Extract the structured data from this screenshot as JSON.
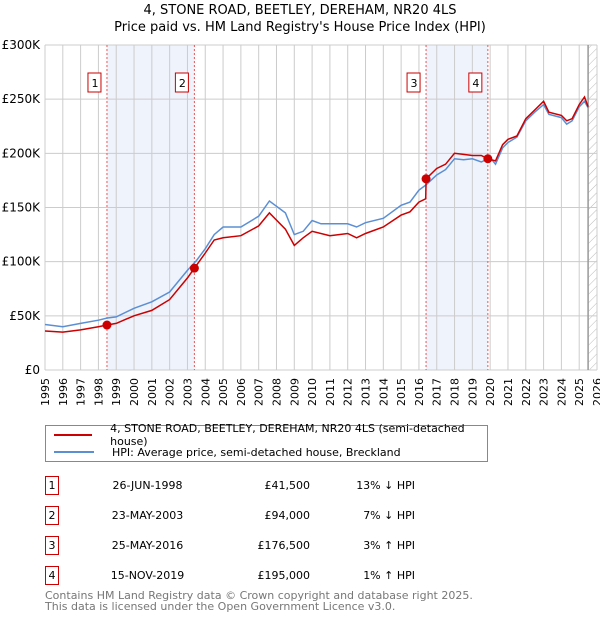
{
  "header": {
    "title": "4, STONE ROAD, BEETLEY, DEREHAM, NR20 4LS",
    "subtitle": "Price paid vs. HM Land Registry's House Price Index (HPI)"
  },
  "chart_data": {
    "type": "line",
    "title": "4, STONE ROAD, BEETLEY, DEREHAM, NR20 4LS — Price paid vs. HM Land Registry's House Price Index (HPI)",
    "xlim": [
      1995,
      2026
    ],
    "ylim": [
      0,
      300000
    ],
    "y_ticks": [
      {
        "v": 0,
        "label": "£0"
      },
      {
        "v": 50000,
        "label": "£50K"
      },
      {
        "v": 100000,
        "label": "£100K"
      },
      {
        "v": 150000,
        "label": "£150K"
      },
      {
        "v": 200000,
        "label": "£200K"
      },
      {
        "v": 250000,
        "label": "£250K"
      },
      {
        "v": 300000,
        "label": "£300K"
      }
    ],
    "x_ticks": [
      "1995",
      "1996",
      "1997",
      "1998",
      "1999",
      "2000",
      "2001",
      "2002",
      "2003",
      "2004",
      "2005",
      "2006",
      "2007",
      "2008",
      "2009",
      "2010",
      "2011",
      "2012",
      "2013",
      "2014",
      "2015",
      "2016",
      "2017",
      "2018",
      "2019",
      "2020",
      "2021",
      "2022",
      "2023",
      "2024",
      "2025",
      "2026"
    ],
    "grid": true,
    "colors": {
      "property": "#cc0000",
      "hpi": "#5b8fd4",
      "shade": "#eef3fc"
    },
    "forecast_from": 2025.5,
    "series": [
      {
        "name": "4, STONE ROAD, BEETLEY, DEREHAM, NR20 4LS (semi-detached house)",
        "points": [
          [
            1995,
            36000
          ],
          [
            1996,
            35000
          ],
          [
            1997,
            37000
          ],
          [
            1998,
            40000
          ],
          [
            1998.48,
            41500
          ],
          [
            1999,
            43000
          ],
          [
            2000,
            50000
          ],
          [
            2001,
            55000
          ],
          [
            2002,
            65000
          ],
          [
            2003,
            85000
          ],
          [
            2003.39,
            94000
          ],
          [
            2004,
            108000
          ],
          [
            2004.5,
            120000
          ],
          [
            2005,
            122000
          ],
          [
            2006,
            124000
          ],
          [
            2007,
            133000
          ],
          [
            2007.6,
            145000
          ],
          [
            2008.5,
            130000
          ],
          [
            2009,
            115000
          ],
          [
            2009.5,
            122000
          ],
          [
            2010,
            128000
          ],
          [
            2011,
            124000
          ],
          [
            2012,
            126000
          ],
          [
            2012.5,
            122000
          ],
          [
            2013,
            126000
          ],
          [
            2014,
            132000
          ],
          [
            2015,
            143000
          ],
          [
            2015.5,
            146000
          ],
          [
            2016,
            155000
          ],
          [
            2016.38,
            158000
          ],
          [
            2016.4,
            176500
          ],
          [
            2017,
            186000
          ],
          [
            2017.5,
            190000
          ],
          [
            2018,
            200000
          ],
          [
            2018.5,
            199000
          ],
          [
            2019,
            198000
          ],
          [
            2019.5,
            198000
          ],
          [
            2019.87,
            195000
          ],
          [
            2020.3,
            193000
          ],
          [
            2020.7,
            208000
          ],
          [
            2021,
            213000
          ],
          [
            2021.5,
            216000
          ],
          [
            2022,
            232000
          ],
          [
            2022.5,
            240000
          ],
          [
            2023,
            248000
          ],
          [
            2023.3,
            238000
          ],
          [
            2024,
            235000
          ],
          [
            2024.3,
            230000
          ],
          [
            2024.6,
            232000
          ],
          [
            2025,
            245000
          ],
          [
            2025.3,
            252000
          ],
          [
            2025.5,
            243000
          ]
        ]
      },
      {
        "name": "HPI: Average price, semi-detached house, Breckland",
        "points": [
          [
            1995,
            42000
          ],
          [
            1996,
            40000
          ],
          [
            1997,
            43000
          ],
          [
            1998,
            46000
          ],
          [
            1998.5,
            48000
          ],
          [
            1999,
            49000
          ],
          [
            2000,
            57000
          ],
          [
            2001,
            63000
          ],
          [
            2002,
            72000
          ],
          [
            2003,
            92000
          ],
          [
            2003.5,
            101000
          ],
          [
            2004,
            112000
          ],
          [
            2004.5,
            125000
          ],
          [
            2005,
            132000
          ],
          [
            2006,
            132000
          ],
          [
            2007,
            142000
          ],
          [
            2007.6,
            156000
          ],
          [
            2008.5,
            145000
          ],
          [
            2009,
            125000
          ],
          [
            2009.5,
            128000
          ],
          [
            2010,
            138000
          ],
          [
            2010.5,
            135000
          ],
          [
            2011,
            135000
          ],
          [
            2012,
            135000
          ],
          [
            2012.5,
            132000
          ],
          [
            2013,
            136000
          ],
          [
            2014,
            140000
          ],
          [
            2015,
            152000
          ],
          [
            2015.5,
            155000
          ],
          [
            2016,
            166000
          ],
          [
            2016.4,
            171000
          ],
          [
            2017,
            180000
          ],
          [
            2017.5,
            185000
          ],
          [
            2018,
            195000
          ],
          [
            2018.5,
            194000
          ],
          [
            2019,
            195000
          ],
          [
            2019.5,
            192000
          ],
          [
            2020,
            196000
          ],
          [
            2020.3,
            190000
          ],
          [
            2020.7,
            205000
          ],
          [
            2021,
            210000
          ],
          [
            2021.5,
            215000
          ],
          [
            2022,
            230000
          ],
          [
            2022.5,
            238000
          ],
          [
            2023,
            245000
          ],
          [
            2023.3,
            236000
          ],
          [
            2024,
            233000
          ],
          [
            2024.3,
            227000
          ],
          [
            2024.6,
            230000
          ],
          [
            2025,
            243000
          ],
          [
            2025.3,
            248000
          ],
          [
            2025.5,
            242000
          ]
        ]
      }
    ],
    "sales": [
      {
        "label": "1",
        "x": 1998.48,
        "y": 41500
      },
      {
        "label": "2",
        "x": 2003.39,
        "y": 94000
      },
      {
        "label": "3",
        "x": 2016.4,
        "y": 176500
      },
      {
        "label": "4",
        "x": 2019.87,
        "y": 195000
      }
    ]
  },
  "legend": {
    "property": "4, STONE ROAD, BEETLEY, DEREHAM, NR20 4LS (semi-detached house)",
    "hpi": "HPI: Average price, semi-detached house, Breckland"
  },
  "transactions": [
    {
      "num": "1",
      "date": "26-JUN-1998",
      "price": "£41,500",
      "hpi": "13% ↓ HPI"
    },
    {
      "num": "2",
      "date": "23-MAY-2003",
      "price": "£94,000",
      "hpi": "7% ↓ HPI"
    },
    {
      "num": "3",
      "date": "25-MAY-2016",
      "price": "£176,500",
      "hpi": "3% ↑ HPI"
    },
    {
      "num": "4",
      "date": "15-NOV-2019",
      "price": "£195,000",
      "hpi": "1% ↑ HPI"
    }
  ],
  "footer": {
    "line1": "Contains HM Land Registry data © Crown copyright and database right 2025.",
    "line2": "This data is licensed under the Open Government Licence v3.0."
  }
}
